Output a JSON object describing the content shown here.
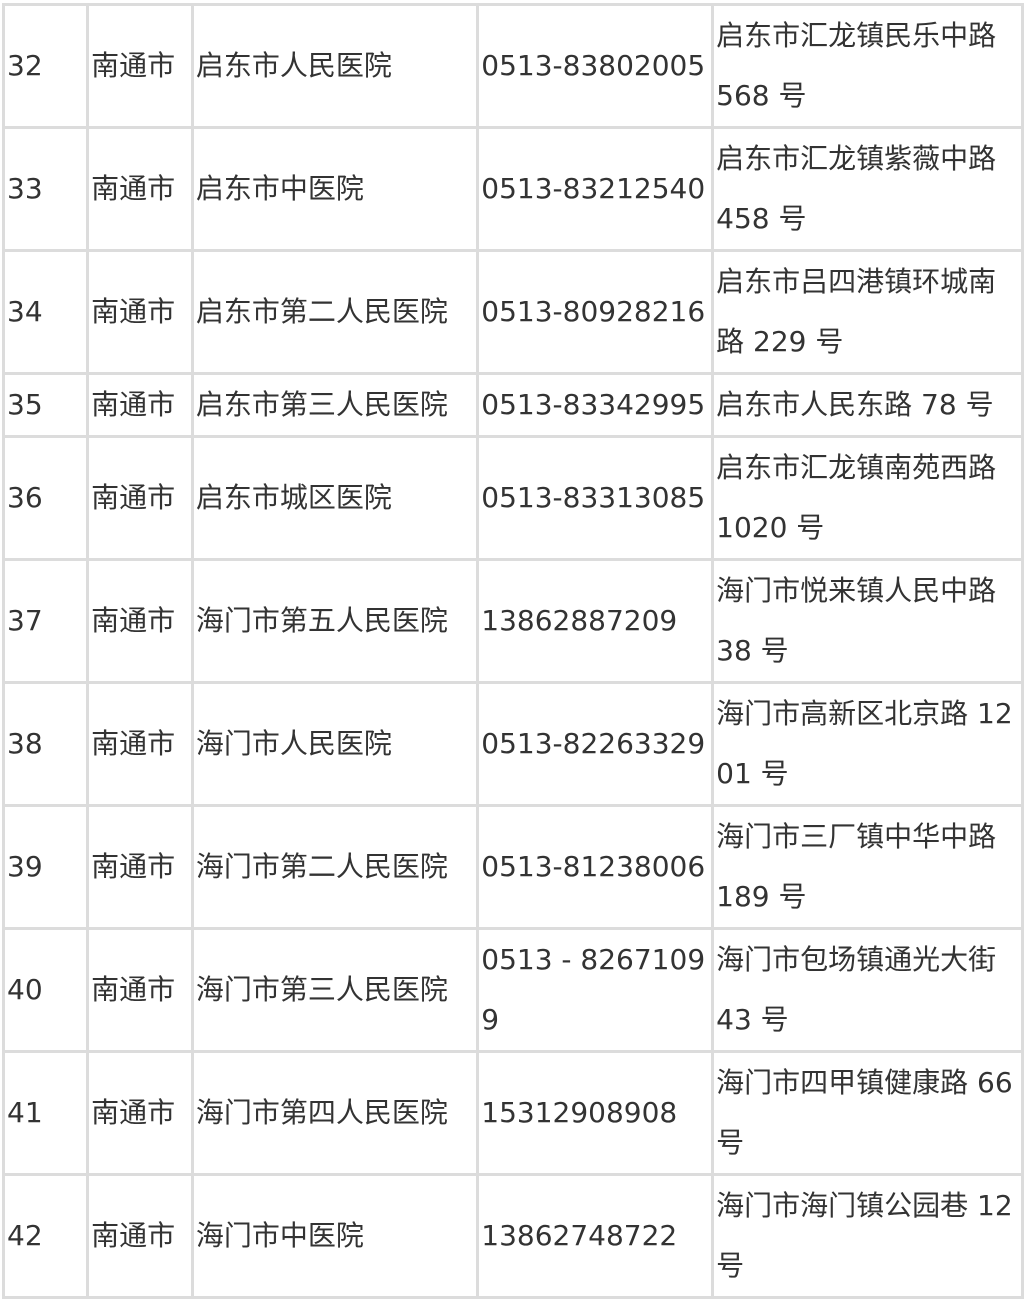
{
  "table": {
    "rows": [
      {
        "no": "32",
        "city": "南通市",
        "hospital": "启东市人民医院",
        "phone": [
          "0513-83802005"
        ],
        "address": [
          "启东市汇龙镇民乐中路",
          "568 号"
        ]
      },
      {
        "no": "33",
        "city": "南通市",
        "hospital": "启东市中医院",
        "phone": [
          "0513-83212540"
        ],
        "address": [
          "启东市汇龙镇紫薇中路",
          "458 号"
        ]
      },
      {
        "no": "34",
        "city": "南通市",
        "hospital": "启东市第二人民医院",
        "phone": [
          "0513-80928216"
        ],
        "address": [
          "启东市吕四港镇环城南",
          "路 229 号"
        ]
      },
      {
        "no": "35",
        "city": "南通市",
        "hospital": "启东市第三人民医院",
        "phone": [
          "0513-83342995"
        ],
        "address": [
          "启东市人民东路 78 号"
        ]
      },
      {
        "no": "36",
        "city": "南通市",
        "hospital": "启东市城区医院",
        "phone": [
          "0513-83313085"
        ],
        "address": [
          "启东市汇龙镇南苑西路",
          "1020 号"
        ]
      },
      {
        "no": "37",
        "city": "南通市",
        "hospital": "海门市第五人民医院",
        "phone": [
          "13862887209"
        ],
        "address": [
          "海门市悦来镇人民中路",
          "38 号"
        ]
      },
      {
        "no": "38",
        "city": "南通市",
        "hospital": "海门市人民医院",
        "phone": [
          "0513-82263329"
        ],
        "address": [
          "海门市高新区北京路 12",
          "01 号"
        ]
      },
      {
        "no": "39",
        "city": "南通市",
        "hospital": "海门市第二人民医院",
        "phone": [
          "0513-81238006"
        ],
        "address": [
          "海门市三厂镇中华中路",
          "189 号"
        ]
      },
      {
        "no": "40",
        "city": "南通市",
        "hospital": "海门市第三人民医院",
        "phone": [
          "0513 - 8267109",
          "9"
        ],
        "address": [
          "海门市包场镇通光大街",
          "43 号"
        ]
      },
      {
        "no": "41",
        "city": "南通市",
        "hospital": "海门市第四人民医院",
        "phone": [
          "15312908908"
        ],
        "address": [
          "海门市四甲镇健康路 66",
          "号"
        ]
      },
      {
        "no": "42",
        "city": "南通市",
        "hospital": "海门市中医院",
        "phone": [
          "13862748722"
        ],
        "address": [
          "海门市海门镇公园巷 12",
          "号"
        ]
      }
    ]
  }
}
